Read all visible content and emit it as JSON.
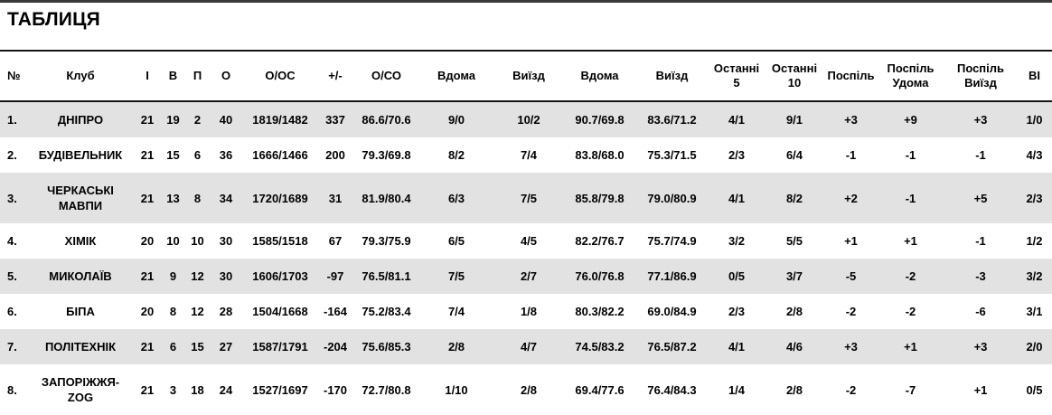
{
  "page": {
    "title": "ТАБЛИЦЯ"
  },
  "colors": {
    "top_bar": "#3a3a3a",
    "rule_dark": "#141414",
    "row_alt": "#e2e2e2",
    "row_base": "#ffffff",
    "text": "#000000"
  },
  "table": {
    "columns": [
      "№",
      "Клуб",
      "І",
      "В",
      "П",
      "О",
      "О/ОС",
      "+/-",
      "О/СО",
      "Вдома",
      "Виїзд",
      "Вдома",
      "Виїзд",
      "Останні 5",
      "Останні 10",
      "Поспіль",
      "Поспіль Удома",
      "Поспіль Виїзд",
      "ВІ"
    ],
    "rows": [
      [
        "1.",
        "ДНІПРО",
        "21",
        "19",
        "2",
        "40",
        "1819/1482",
        "337",
        "86.6/70.6",
        "9/0",
        "10/2",
        "90.7/69.8",
        "83.6/71.2",
        "4/1",
        "9/1",
        "+3",
        "+9",
        "+3",
        "1/0"
      ],
      [
        "2.",
        "БУДІВЕЛЬНИК",
        "21",
        "15",
        "6",
        "36",
        "1666/1466",
        "200",
        "79.3/69.8",
        "8/2",
        "7/4",
        "83.8/68.0",
        "75.3/71.5",
        "2/3",
        "6/4",
        "-1",
        "-1",
        "-1",
        "4/3"
      ],
      [
        "3.",
        "ЧЕРКАСЬКІ МАВПИ",
        "21",
        "13",
        "8",
        "34",
        "1720/1689",
        "31",
        "81.9/80.4",
        "6/3",
        "7/5",
        "85.8/79.8",
        "79.0/80.9",
        "4/1",
        "8/2",
        "+2",
        "-1",
        "+5",
        "2/3"
      ],
      [
        "4.",
        "ХІМІК",
        "20",
        "10",
        "10",
        "30",
        "1585/1518",
        "67",
        "79.3/75.9",
        "6/5",
        "4/5",
        "82.2/76.7",
        "75.7/74.9",
        "3/2",
        "5/5",
        "+1",
        "+1",
        "-1",
        "1/2"
      ],
      [
        "5.",
        "МИКОЛАЇВ",
        "21",
        "9",
        "12",
        "30",
        "1606/1703",
        "-97",
        "76.5/81.1",
        "7/5",
        "2/7",
        "76.0/76.8",
        "77.1/86.9",
        "0/5",
        "3/7",
        "-5",
        "-2",
        "-3",
        "3/2"
      ],
      [
        "6.",
        "БІПА",
        "20",
        "8",
        "12",
        "28",
        "1504/1668",
        "-164",
        "75.2/83.4",
        "7/4",
        "1/8",
        "80.3/82.2",
        "69.0/84.9",
        "2/3",
        "2/8",
        "-2",
        "-2",
        "-6",
        "3/1"
      ],
      [
        "7.",
        "ПОЛІТЕХНІК",
        "21",
        "6",
        "15",
        "27",
        "1587/1791",
        "-204",
        "75.6/85.3",
        "2/8",
        "4/7",
        "74.5/83.2",
        "76.5/87.2",
        "4/1",
        "4/6",
        "+3",
        "+1",
        "+3",
        "2/0"
      ],
      [
        "8.",
        "ЗАПОРІЖЖЯ-ZOG",
        "21",
        "3",
        "18",
        "24",
        "1527/1697",
        "-170",
        "72.7/80.8",
        "1/10",
        "2/8",
        "69.4/77.6",
        "76.4/84.3",
        "1/4",
        "2/8",
        "-2",
        "-7",
        "+1",
        "0/5"
      ]
    ]
  }
}
